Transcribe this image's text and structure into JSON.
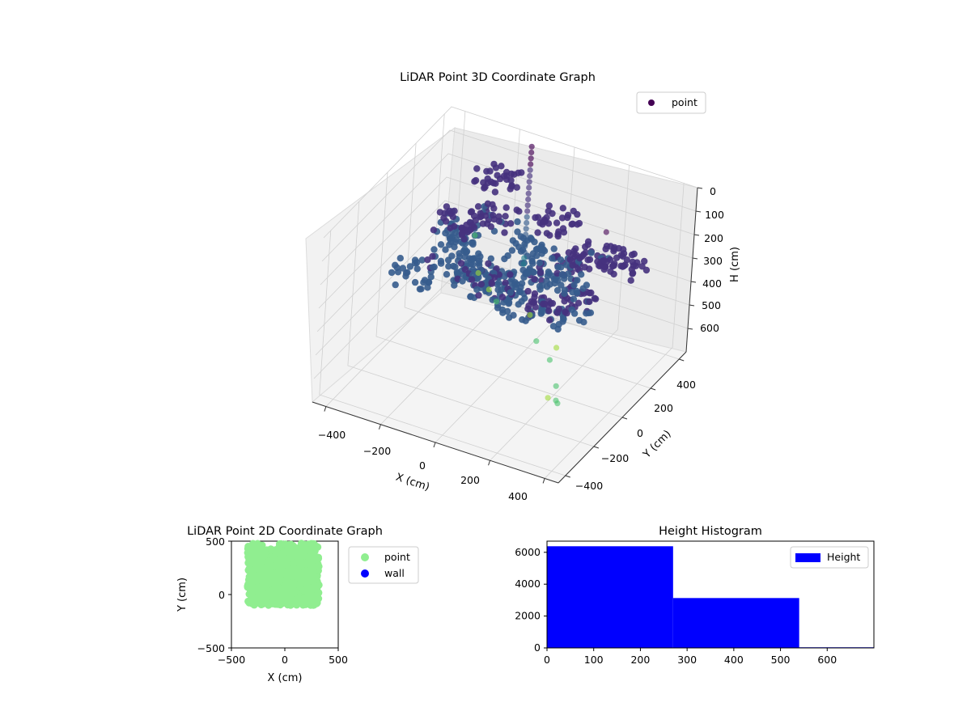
{
  "chart_data": [
    {
      "type": "scatter",
      "title": "LiDAR Point 3D Coordinate Graph",
      "xlabel": "X (cm)",
      "ylabel": "Y (cm)",
      "zlabel": "H (cm)",
      "x_ticks": [
        "−400",
        "−200",
        "0",
        "200",
        "400"
      ],
      "y_ticks": [
        "−400",
        "−200",
        "0",
        "200",
        "400"
      ],
      "z_ticks": [
        "0",
        "100",
        "200",
        "300",
        "400",
        "500",
        "600"
      ],
      "z_inverted": true,
      "colormap": "viridis",
      "legend": {
        "placement": "top-right",
        "entries": [
          "point"
        ]
      },
      "series": [
        {
          "name": "point",
          "color": "#440154",
          "points": [
            [
              -300,
              250,
              350
            ],
            [
              -250,
              150,
              380
            ],
            [
              -150,
              100,
              370
            ],
            [
              -50,
              80,
              360
            ],
            [
              50,
              120,
              330
            ],
            [
              100,
              200,
              300
            ],
            [
              200,
              250,
              270
            ],
            [
              300,
              250,
              250
            ],
            [
              -100,
              0,
              320
            ],
            [
              0,
              -50,
              300
            ],
            [
              100,
              -80,
              310
            ],
            [
              200,
              -60,
              300
            ],
            [
              250,
              0,
              290
            ],
            [
              -300,
              -50,
              330
            ],
            [
              -200,
              300,
              280
            ],
            [
              0,
              350,
              250
            ],
            [
              -250,
              400,
              200
            ],
            [
              -280,
              200,
              260
            ],
            [
              150,
              150,
              320
            ],
            [
              -50,
              250,
              340
            ]
          ]
        }
      ],
      "outliers": [
        [
          -280,
          380,
          600
        ],
        [
          -200,
          300,
          590
        ],
        [
          0,
          200,
          560
        ],
        [
          100,
          50,
          540
        ],
        [
          200,
          -50,
          520
        ],
        [
          300,
          -200,
          500
        ],
        [
          350,
          -300,
          480
        ],
        [
          380,
          -350,
          450
        ],
        [
          -100,
          150,
          510
        ],
        [
          150,
          100,
          580
        ],
        [
          250,
          -150,
          600
        ],
        [
          -320,
          420,
          480
        ],
        [
          300,
          100,
          30
        ],
        [
          350,
          -50,
          60
        ]
      ]
    },
    {
      "type": "scatter",
      "title": "LiDAR Point 2D Coordinate Graph",
      "xlabel": "X (cm)",
      "ylabel": "Y (cm)",
      "xlim": [
        -500,
        500
      ],
      "ylim": [
        -500,
        500
      ],
      "x_ticks": [
        "−500",
        "0",
        "500"
      ],
      "y_ticks": [
        "−500",
        "0",
        "500"
      ],
      "legend": {
        "placement": "right",
        "entries": [
          "point",
          "wall"
        ]
      },
      "series": [
        {
          "name": "point",
          "color": "#90ee90",
          "region": {
            "x": [
              -350,
              320
            ],
            "y": [
              -100,
              480
            ]
          }
        },
        {
          "name": "wall",
          "color": "#0000ff",
          "points": []
        }
      ]
    },
    {
      "type": "bar",
      "title": "Height Histogram",
      "xlabel": "",
      "ylabel": "",
      "xlim": [
        0,
        700
      ],
      "ylim": [
        0,
        6700
      ],
      "x_ticks": [
        "0",
        "100",
        "200",
        "300",
        "400",
        "500",
        "600"
      ],
      "y_ticks": [
        "0",
        "2000",
        "4000",
        "6000"
      ],
      "bin_edges": [
        0,
        270,
        540,
        700
      ],
      "values": [
        6380,
        3130,
        40
      ],
      "legend": {
        "placement": "top-right",
        "entries": [
          "Height"
        ]
      },
      "series": [
        {
          "name": "Height",
          "color": "#0000ff"
        }
      ]
    }
  ]
}
